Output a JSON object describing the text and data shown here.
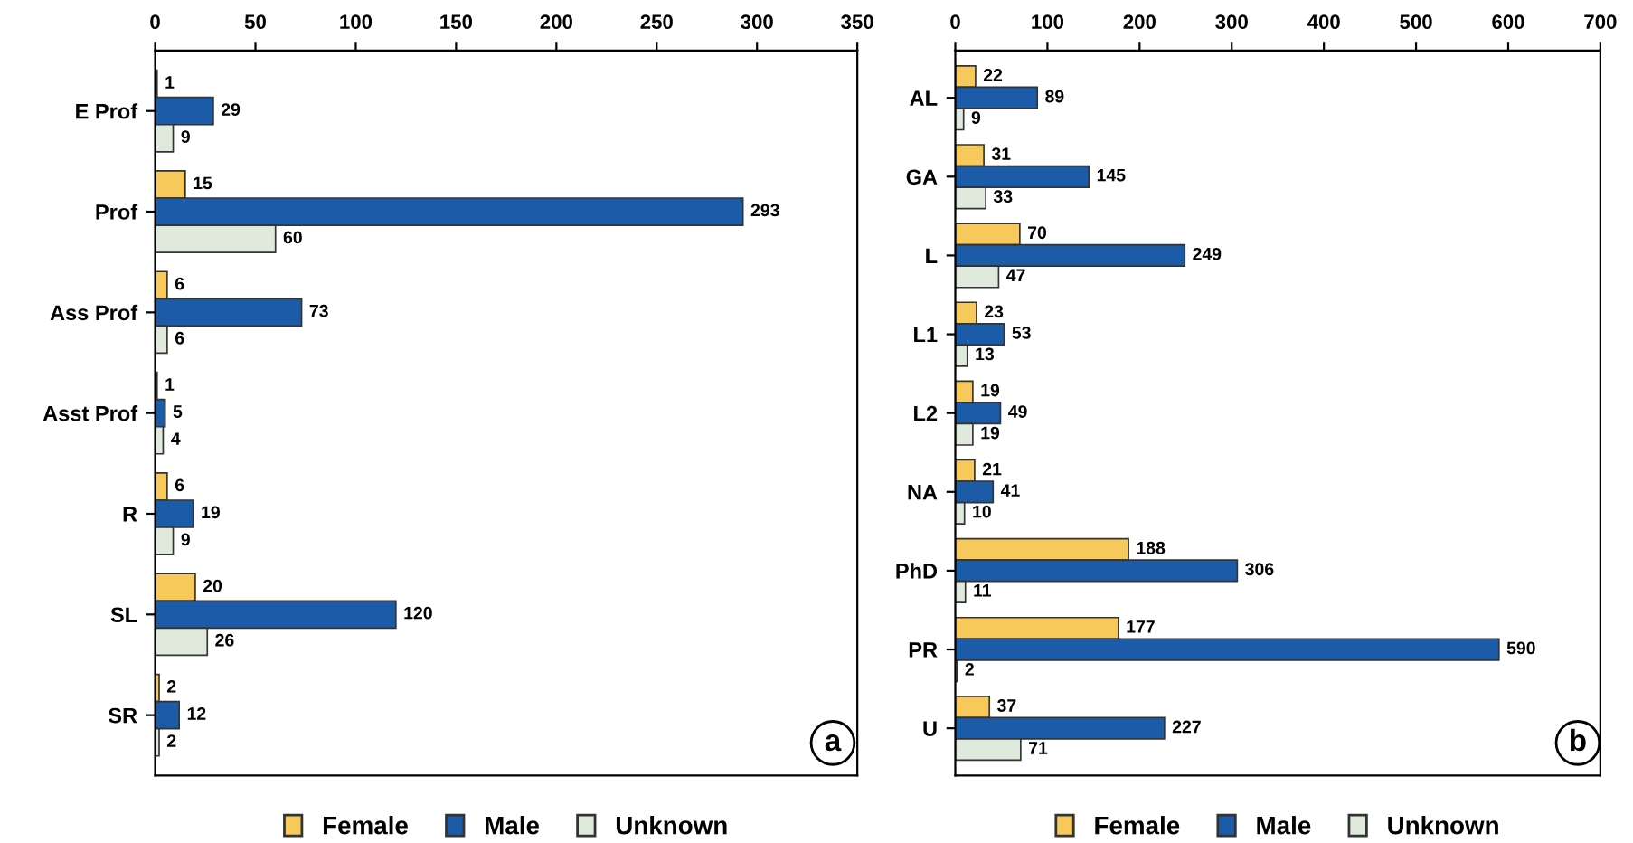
{
  "chart_data": [
    {
      "type": "bar",
      "orientation": "horizontal",
      "categories": [
        "E Prof",
        "Prof",
        "Ass Prof",
        "Asst Prof",
        "R",
        "SL",
        "SR"
      ],
      "series": [
        {
          "name": "Female",
          "color": "#f7c95b",
          "values": [
            1,
            15,
            6,
            1,
            6,
            20,
            2
          ]
        },
        {
          "name": "Male",
          "color": "#1c5ba8",
          "values": [
            29,
            293,
            73,
            5,
            19,
            120,
            12
          ]
        },
        {
          "name": "Unknown",
          "color": "#dfeadc",
          "values": [
            9,
            60,
            6,
            4,
            9,
            26,
            2
          ]
        }
      ],
      "xlim": [
        0,
        350
      ],
      "xticks": [
        0,
        50,
        100,
        150,
        200,
        250,
        300,
        350
      ],
      "data_labels": true,
      "legend": "bottom",
      "grid": false,
      "annotations": [
        "a"
      ]
    },
    {
      "type": "bar",
      "orientation": "horizontal",
      "categories": [
        "AL",
        "GA",
        "L",
        "L1",
        "L2",
        "NA",
        "PhD",
        "PR",
        "U"
      ],
      "series": [
        {
          "name": "Female",
          "color": "#f7c95b",
          "values": [
            22,
            31,
            70,
            23,
            19,
            21,
            188,
            177,
            37
          ]
        },
        {
          "name": "Male",
          "color": "#1c5ba8",
          "values": [
            89,
            145,
            249,
            53,
            49,
            41,
            306,
            590,
            227
          ]
        },
        {
          "name": "Unknown",
          "color": "#dfeadc",
          "values": [
            9,
            33,
            47,
            13,
            19,
            10,
            11,
            2,
            71
          ]
        }
      ],
      "xlim": [
        0,
        700
      ],
      "xticks": [
        0,
        100,
        200,
        300,
        400,
        500,
        600,
        700
      ],
      "data_labels": true,
      "legend": "bottom",
      "grid": false,
      "annotations": [
        "b"
      ]
    }
  ]
}
